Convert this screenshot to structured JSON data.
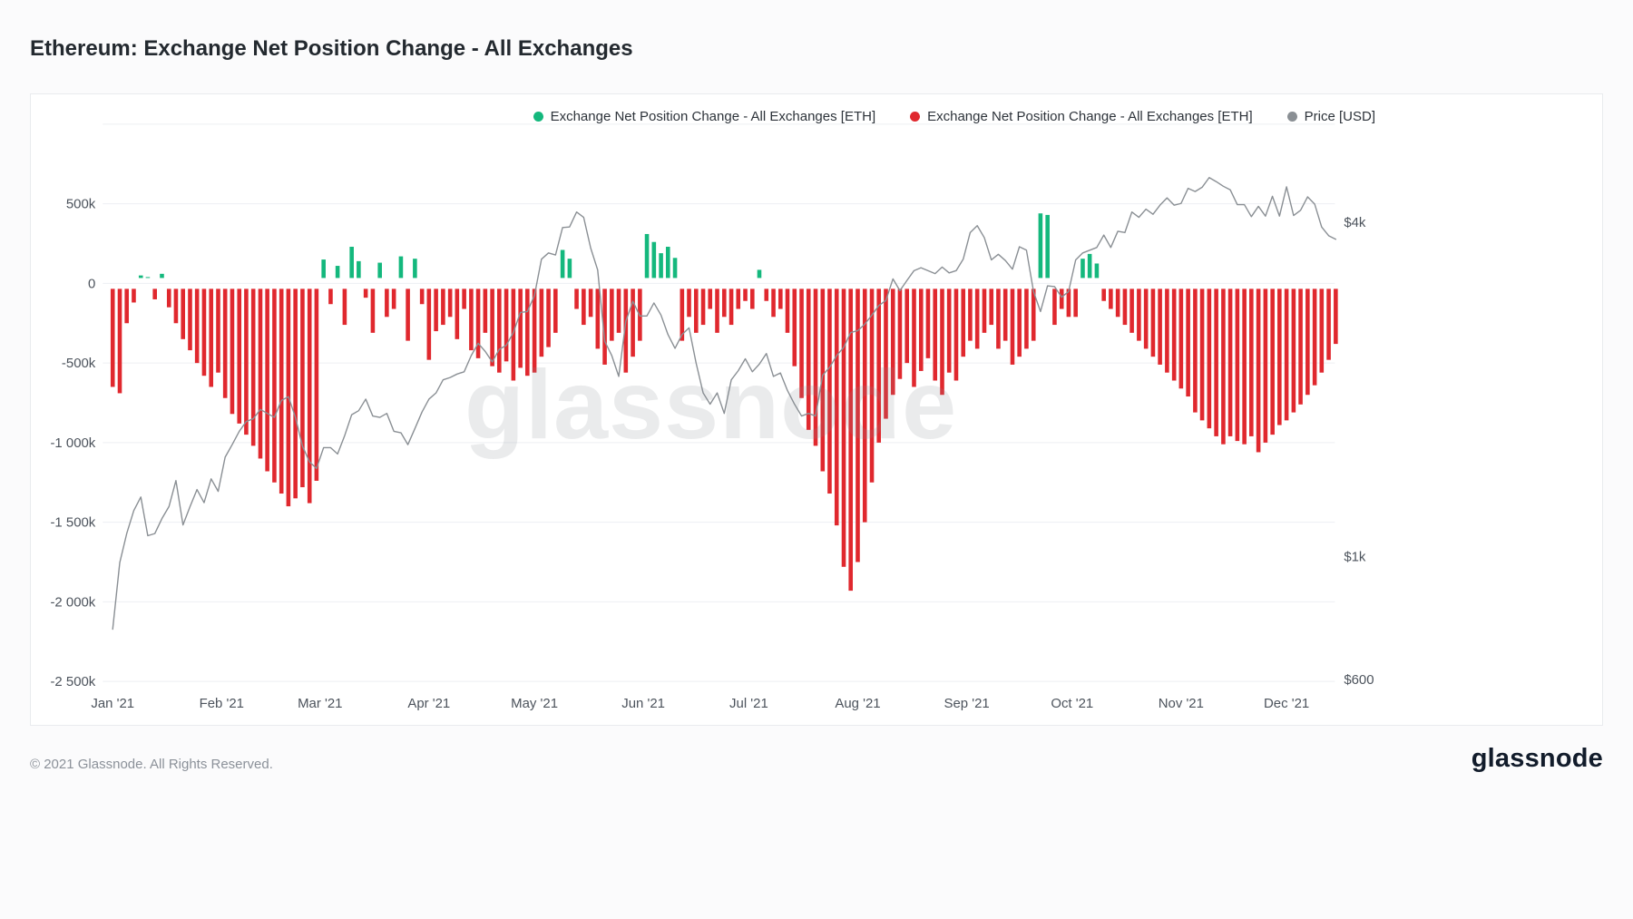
{
  "page": {
    "title": "Ethereum: Exchange Net Position Change - All Exchanges",
    "footer": {
      "copyright": "© 2021 Glassnode. All Rights Reserved.",
      "brand": "glassnode"
    }
  },
  "legend": {
    "items": [
      {
        "label": "Exchange Net Position Change - All Exchanges [ETH]",
        "color": "#14b87d",
        "series": "inflow-positive"
      },
      {
        "label": "Exchange Net Position Change - All Exchanges [ETH]",
        "color": "#e0282e",
        "series": "outflow-negative"
      },
      {
        "label": "Price [USD]",
        "color": "#8a8f94",
        "series": "price"
      }
    ]
  },
  "chart_data": {
    "type": "bar",
    "title": "Ethereum: Exchange Net Position Change - All Exchanges",
    "watermark": "glassnode",
    "x_start_date": "2021-01-01",
    "x_interval_days": 2,
    "x_tick_labels": [
      "Jan '21",
      "Feb '21",
      "Mar '21",
      "Apr '21",
      "May '21",
      "Jun '21",
      "Jul '21",
      "Aug '21",
      "Sep '21",
      "Oct '21",
      "Nov '21",
      "Dec '21"
    ],
    "left_axis": {
      "units": "ETH (thousands)",
      "range_k": [
        -2500,
        1000
      ],
      "grid_values_k": [
        1000,
        500,
        0,
        -500,
        -1000,
        -1500,
        -2000,
        -2500
      ],
      "ticks": [
        {
          "value_k": 500,
          "label": "500k"
        },
        {
          "value_k": 0,
          "label": "0"
        },
        {
          "value_k": -500,
          "label": "-500k"
        },
        {
          "value_k": -1000,
          "label": "-1 000k"
        },
        {
          "value_k": -1500,
          "label": "-1 500k"
        },
        {
          "value_k": -2000,
          "label": "-2 000k"
        },
        {
          "value_k": -2500,
          "label": "-2 500k"
        }
      ]
    },
    "right_axis": {
      "units": "USD",
      "scale": "log",
      "ticks": [
        {
          "value_usd": 4000,
          "label": "$4k"
        },
        {
          "value_usd": 1000,
          "label": "$1k"
        },
        {
          "value_usd": 600,
          "label": "$600"
        }
      ]
    },
    "bar_series": {
      "name": "Exchange Net Position Change - All Exchanges [ETH]",
      "units": "thousand ETH",
      "positive_color": "#14b87d",
      "negative_color": "#e0282e",
      "values_k_eth": [
        -650,
        -690,
        -250,
        -120,
        50,
        40,
        -100,
        60,
        -150,
        -250,
        -350,
        -420,
        -500,
        -580,
        -650,
        -560,
        -720,
        -820,
        -880,
        -950,
        -1020,
        -1100,
        -1180,
        -1250,
        -1320,
        -1400,
        -1350,
        -1280,
        -1380,
        -1240,
        150,
        -130,
        110,
        -260,
        230,
        140,
        -90,
        -310,
        130,
        -210,
        -160,
        170,
        -360,
        155,
        -130,
        -480,
        -300,
        -260,
        -210,
        -350,
        -160,
        -420,
        -470,
        -310,
        -520,
        -560,
        -490,
        -610,
        -530,
        -580,
        -560,
        -460,
        -400,
        -310,
        210,
        155,
        -160,
        -260,
        -210,
        -410,
        -510,
        -360,
        -310,
        -560,
        -460,
        -360,
        310,
        260,
        190,
        230,
        160,
        -360,
        -210,
        -310,
        -260,
        -160,
        -310,
        -210,
        -260,
        -160,
        -110,
        -160,
        85,
        -110,
        -210,
        -160,
        -310,
        -520,
        -720,
        -920,
        -1020,
        -1180,
        -1320,
        -1520,
        -1780,
        -1930,
        -1750,
        -1500,
        -1250,
        -1000,
        -850,
        -700,
        -600,
        -500,
        -650,
        -550,
        -470,
        -610,
        -700,
        -560,
        -610,
        -460,
        -360,
        -410,
        -310,
        -260,
        -410,
        -360,
        -510,
        -460,
        -410,
        -360,
        440,
        430,
        -260,
        -160,
        -210,
        -210,
        155,
        185,
        125,
        -110,
        -160,
        -210,
        -260,
        -310,
        -360,
        -410,
        -460,
        -510,
        -560,
        -610,
        -660,
        -710,
        -810,
        -860,
        -910,
        -960,
        -1010,
        -960,
        -990,
        -1010,
        -960,
        -1060,
        -1000,
        -950,
        -890,
        -860,
        -810,
        -760,
        -700,
        -640,
        -560,
        -480,
        -380
      ]
    },
    "line_series": {
      "name": "Price [USD]",
      "color": "#8a8f94",
      "values_usd": [
        740,
        975,
        1100,
        1210,
        1280,
        1090,
        1100,
        1170,
        1230,
        1370,
        1140,
        1230,
        1320,
        1250,
        1380,
        1310,
        1510,
        1590,
        1680,
        1750,
        1770,
        1840,
        1810,
        1780,
        1910,
        1940,
        1780,
        1580,
        1480,
        1440,
        1570,
        1570,
        1530,
        1650,
        1800,
        1830,
        1920,
        1790,
        1780,
        1810,
        1680,
        1670,
        1590,
        1700,
        1820,
        1920,
        1970,
        2080,
        2100,
        2130,
        2150,
        2300,
        2420,
        2340,
        2240,
        2360,
        2400,
        2530,
        2750,
        2760,
        2950,
        3430,
        3520,
        3490,
        3910,
        3920,
        4170,
        4080,
        3590,
        3280,
        2440,
        2300,
        2110,
        2650,
        2880,
        2710,
        2710,
        2860,
        2720,
        2510,
        2370,
        2510,
        2580,
        2230,
        1970,
        1880,
        1970,
        1810,
        2080,
        2160,
        2270,
        2150,
        2220,
        2320,
        2110,
        2140,
        1990,
        1880,
        1790,
        1810,
        1790,
        2120,
        2190,
        2300,
        2380,
        2530,
        2550,
        2620,
        2720,
        2830,
        2890,
        3160,
        3010,
        3140,
        3270,
        3310,
        3270,
        3230,
        3320,
        3240,
        3270,
        3430,
        3830,
        3940,
        3750,
        3420,
        3500,
        3410,
        3290,
        3610,
        3560,
        3000,
        2760,
        3070,
        3060,
        2930,
        3000,
        3420,
        3520,
        3560,
        3600,
        3790,
        3600,
        3850,
        3830,
        4170,
        4080,
        4220,
        4130,
        4290,
        4420,
        4290,
        4320,
        4600,
        4540,
        4620,
        4810,
        4730,
        4640,
        4570,
        4300,
        4300,
        4090,
        4270,
        4100,
        4450,
        4100,
        4630,
        4110,
        4200,
        4440,
        4310,
        3920,
        3780,
        3725
      ]
    }
  }
}
